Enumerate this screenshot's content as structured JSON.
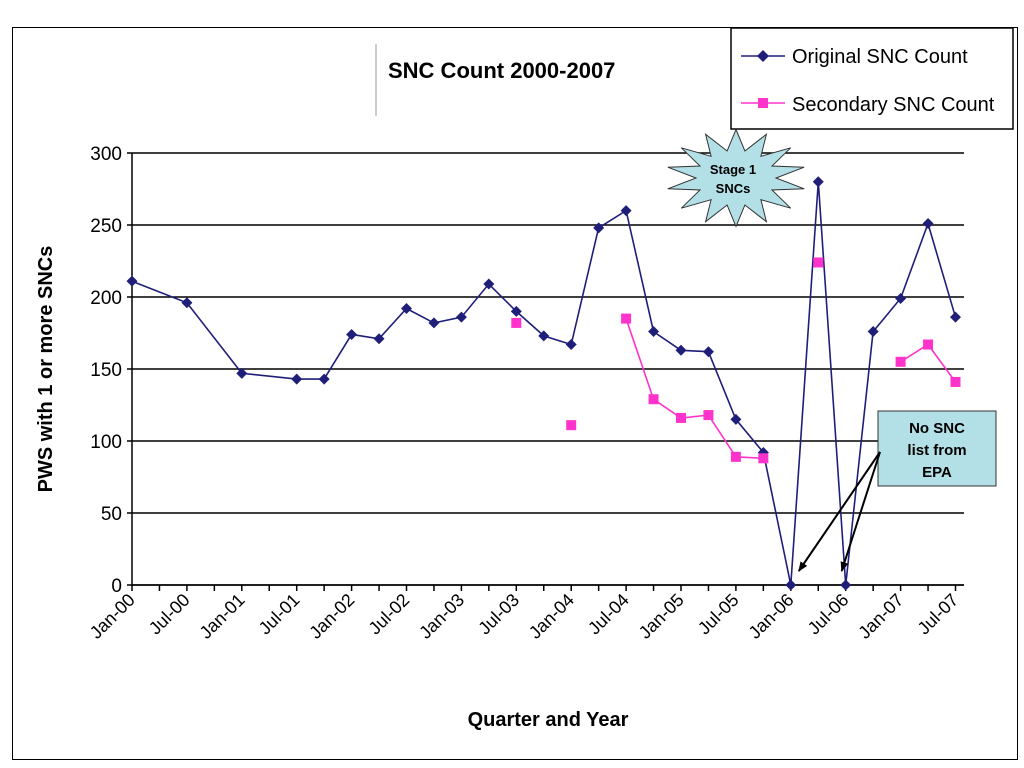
{
  "chart_data": {
    "type": "line",
    "title": "SNC Count 2000-2007",
    "xlabel": "Quarter and Year",
    "ylabel": "PWS with 1 or more SNCs",
    "ylim": [
      0,
      300
    ],
    "yticks": [
      0,
      50,
      100,
      150,
      200,
      250,
      300
    ],
    "xtick_labels": [
      "Jan-00",
      "Jul-00",
      "Jan-01",
      "Jul-01",
      "Jan-02",
      "Jul-02",
      "Jan-03",
      "Jul-03",
      "Jan-04",
      "Jul-04",
      "Jan-05",
      "Jul-05",
      "Jan-06",
      "Jul-06",
      "Jan-07",
      "Jul-07"
    ],
    "grid": "horizontal",
    "legend_position": "top-right",
    "series": [
      {
        "name": "Original SNC Count",
        "color": "#1f1f7a",
        "marker": "diamond",
        "points": [
          {
            "x": "Jan-00",
            "y": 211
          },
          {
            "x": "Jul-00",
            "y": 196
          },
          {
            "x": "Jan-01",
            "y": 147
          },
          {
            "x": "Jul-01",
            "y": 143
          },
          {
            "x": "Oct-01",
            "y": 143
          },
          {
            "x": "Jan-02",
            "y": 174
          },
          {
            "x": "Apr-02",
            "y": 171
          },
          {
            "x": "Jul-02",
            "y": 192
          },
          {
            "x": "Oct-02",
            "y": 182
          },
          {
            "x": "Jan-03",
            "y": 186
          },
          {
            "x": "Apr-03",
            "y": 209
          },
          {
            "x": "Jul-03",
            "y": 190
          },
          {
            "x": "Oct-03",
            "y": 173
          },
          {
            "x": "Jan-04",
            "y": 167
          },
          {
            "x": "Apr-04",
            "y": 248
          },
          {
            "x": "Jul-04",
            "y": 260
          },
          {
            "x": "Oct-04",
            "y": 176
          },
          {
            "x": "Jan-05",
            "y": 163
          },
          {
            "x": "Apr-05",
            "y": 162
          },
          {
            "x": "Jul-05",
            "y": 115
          },
          {
            "x": "Oct-05",
            "y": 92
          },
          {
            "x": "Jan-06",
            "y": 0
          },
          {
            "x": "Apr-06",
            "y": 280
          },
          {
            "x": "Jul-06",
            "y": 0
          },
          {
            "x": "Oct-06",
            "y": 176
          },
          {
            "x": "Jan-07",
            "y": 199
          },
          {
            "x": "Apr-07",
            "y": 251
          },
          {
            "x": "Jul-07",
            "y": 186
          }
        ]
      },
      {
        "name": "Secondary SNC Count",
        "color": "#ff33cc",
        "marker": "square",
        "points": [
          {
            "x": "Jul-03",
            "y": 182
          },
          null,
          {
            "x": "Jan-04",
            "y": 111
          },
          null,
          {
            "x": "Jul-04",
            "y": 185
          },
          {
            "x": "Oct-04",
            "y": 129
          },
          {
            "x": "Jan-05",
            "y": 116
          },
          {
            "x": "Apr-05",
            "y": 118
          },
          {
            "x": "Jul-05",
            "y": 89
          },
          {
            "x": "Oct-05",
            "y": 88
          },
          null,
          {
            "x": "Apr-06",
            "y": 224
          },
          null,
          {
            "x": "Jan-07",
            "y": 155
          },
          {
            "x": "Apr-07",
            "y": 167
          },
          {
            "x": "Jul-07",
            "y": 141
          }
        ]
      }
    ],
    "annotations": {
      "star_lines": [
        "Stage 1",
        "SNCs"
      ],
      "box_lines": [
        "No SNC",
        "list from",
        "EPA"
      ],
      "box_color": "#b3e0e6",
      "star_color": "#b3e0e6",
      "arrow_targets": [
        "Jan-06",
        "Jul-06"
      ]
    }
  }
}
